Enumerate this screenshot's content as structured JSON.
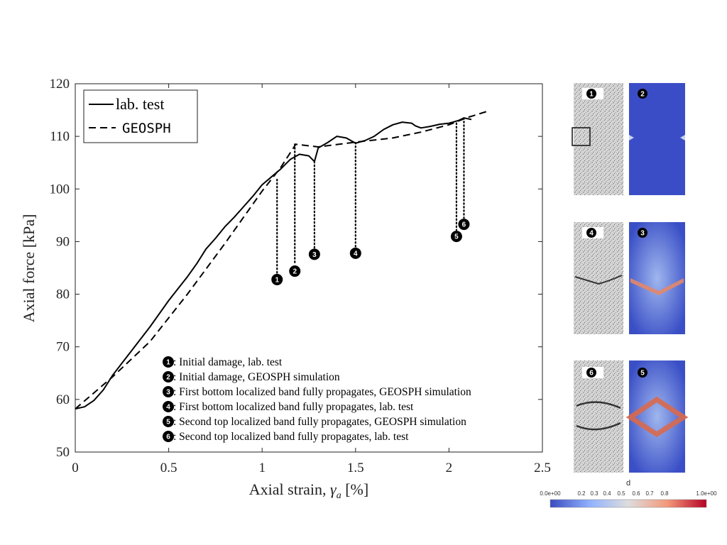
{
  "chart_data": {
    "type": "line",
    "xlabel": "Axial strain,",
    "xlabel_symbol": "γ",
    "xlabel_subscript": "a",
    "xlabel_unit": "[%]",
    "ylabel": "Axial force [kPa]",
    "xlim": [
      0,
      2.5
    ],
    "ylim": [
      50,
      120
    ],
    "xticks": [
      "0",
      "0.5",
      "1",
      "1.5",
      "2",
      "2.5"
    ],
    "yticks": [
      "50",
      "60",
      "70",
      "80",
      "90",
      "100",
      "110",
      "120"
    ],
    "grid": false,
    "legend_position": "top-left",
    "series": [
      {
        "name": "lab. test",
        "style": "solid",
        "x": [
          0,
          0.05,
          0.1,
          0.15,
          0.2,
          0.3,
          0.4,
          0.5,
          0.6,
          0.65,
          0.7,
          0.75,
          0.8,
          0.85,
          0.9,
          0.95,
          1.0,
          1.05,
          1.1,
          1.15,
          1.2,
          1.25,
          1.28,
          1.3,
          1.35,
          1.4,
          1.45,
          1.5,
          1.55,
          1.6,
          1.65,
          1.7,
          1.75,
          1.8,
          1.82,
          1.85,
          1.9,
          1.95,
          2.0,
          2.05,
          2.08,
          2.12
        ],
        "y": [
          58.2,
          58.6,
          59.8,
          61.8,
          64.6,
          69.2,
          73.8,
          78.8,
          83.3,
          85.8,
          88.6,
          90.6,
          92.8,
          94.6,
          96.6,
          98.6,
          100.8,
          102.3,
          103.8,
          105.6,
          106.6,
          106.3,
          105.2,
          107.8,
          108.8,
          110.0,
          109.7,
          108.7,
          109.2,
          110.0,
          111.3,
          112.2,
          112.7,
          112.5,
          112.0,
          111.6,
          111.9,
          112.3,
          112.5,
          113.0,
          113.5,
          113.2
        ]
      },
      {
        "name": "GEOSPH",
        "style": "dashed",
        "x": [
          0,
          0.2,
          0.4,
          0.6,
          0.8,
          1.0,
          1.1,
          1.18,
          1.3,
          1.5,
          1.7,
          1.85,
          2.0,
          2.1,
          2.2
        ],
        "y": [
          58.2,
          64.3,
          71.0,
          80.0,
          89.6,
          99.6,
          104.1,
          108.5,
          108.0,
          108.9,
          109.7,
          110.8,
          112.2,
          113.6,
          114.7
        ]
      }
    ],
    "markers": [
      {
        "id": "1",
        "x": 1.08,
        "y_top": 101.8,
        "y_end": 84.0
      },
      {
        "id": "2",
        "x": 1.175,
        "y_top": 108.5,
        "y_end": 85.6
      },
      {
        "id": "3",
        "x": 1.28,
        "y_top": 105.2,
        "y_end": 88.8
      },
      {
        "id": "4",
        "x": 1.5,
        "y_top": 108.8,
        "y_end": 89.0
      },
      {
        "id": "5",
        "x": 2.04,
        "y_top": 112.5,
        "y_end": 92.2
      },
      {
        "id": "6",
        "x": 2.08,
        "y_top": 113.5,
        "y_end": 94.5
      }
    ],
    "annotations": [
      {
        "id": "1",
        "text": ": Initial damage, lab. test"
      },
      {
        "id": "2",
        "text": ": Initial damage, GEOSPH simulation"
      },
      {
        "id": "3",
        "text": ": First bottom localized band fully propagates, GEOSPH simulation"
      },
      {
        "id": "4",
        "text": ": First bottom localized band fully propagates, lab. test"
      },
      {
        "id": "5",
        "text": ": Second top localized band fully propagates, GEOSPH simulation"
      },
      {
        "id": "6",
        "text": ": Second top localized band fully propagates, lab. test"
      }
    ]
  },
  "panels": [
    {
      "lab_id": "1",
      "sim_id": "2"
    },
    {
      "lab_id": "4",
      "sim_id": "3"
    },
    {
      "lab_id": "6",
      "sim_id": "5"
    }
  ],
  "colorbar": {
    "title": "d",
    "ticks": [
      "0.0e+00",
      "0.2",
      "0.3",
      "0.4",
      "0.5",
      "0.6",
      "0.7",
      "0.8",
      "1.0e+00"
    ],
    "colors": [
      "#3b4cc0",
      "#dddddd",
      "#b40426"
    ]
  }
}
